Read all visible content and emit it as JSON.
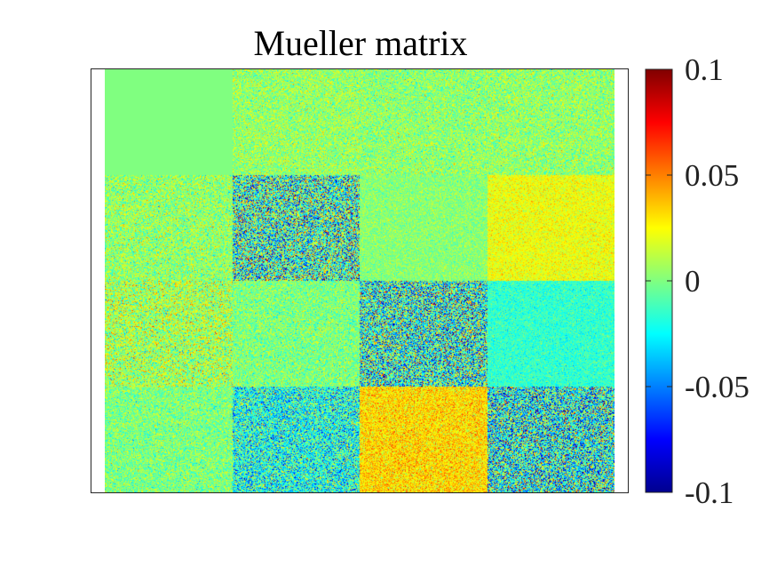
{
  "chart_data": {
    "type": "heatmap",
    "title": "Mueller matrix",
    "rows": 4,
    "cols": 4,
    "colormap": "jet",
    "clim": [
      -0.1,
      0.1
    ],
    "colorbar": {
      "ticks": [
        0.1,
        0.05,
        0,
        -0.05,
        -0.1
      ],
      "tick_labels": [
        "0.1",
        "0.05",
        "0",
        "-0.05",
        "-0.1"
      ],
      "position": "right"
    },
    "block_means": [
      [
        0.0,
        0.005,
        0.003,
        0.004
      ],
      [
        0.004,
        -0.012,
        0.002,
        0.022
      ],
      [
        0.008,
        0.0,
        -0.015,
        -0.015
      ],
      [
        0.0,
        -0.02,
        0.032,
        -0.02
      ]
    ],
    "block_noise": [
      [
        0.0,
        0.03,
        0.03,
        0.03
      ],
      [
        0.035,
        0.09,
        0.02,
        0.02
      ],
      [
        0.045,
        0.03,
        0.09,
        0.02
      ],
      [
        0.03,
        0.06,
        0.03,
        0.09
      ]
    ],
    "axes_visible": false,
    "grid": false
  }
}
